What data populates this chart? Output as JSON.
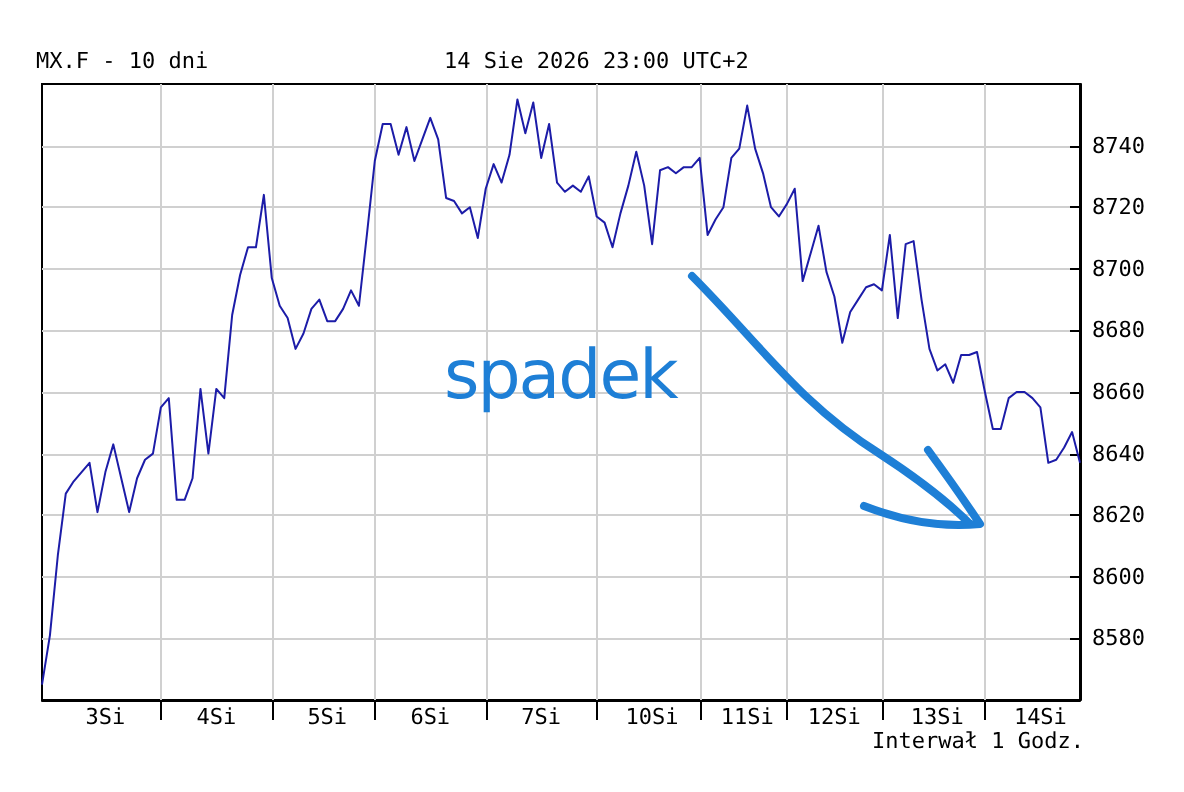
{
  "chart_data": {
    "type": "line",
    "title": "MX.F - 10 dni",
    "subtitle": "14 Sie 2026 23:00 UTC+2",
    "annotations": [
      "spadek",
      "Interwał 1 Godz."
    ],
    "color": "#1c1ca8",
    "categories": [
      null,
      null,
      null,
      null,
      null,
      null,
      null,
      null,
      "3Si",
      null,
      null,
      null,
      null,
      null,
      null,
      null,
      null,
      null,
      null,
      null,
      null,
      null,
      "4Si",
      null,
      null,
      null,
      null,
      null,
      null,
      null,
      null,
      null,
      null,
      null,
      null,
      null,
      "5Si",
      null,
      null,
      null,
      null,
      null,
      null,
      null,
      null,
      null,
      null,
      null,
      null,
      "6Si",
      null,
      null,
      null,
      null,
      null,
      null,
      null,
      null,
      null,
      null,
      null,
      null,
      null,
      "7Si",
      null,
      null,
      null,
      null,
      null,
      null,
      null,
      null,
      null,
      null,
      null,
      null,
      null,
      "10Si",
      null,
      null,
      null,
      null,
      null,
      null,
      null,
      null,
      null,
      null,
      null,
      "11Si",
      null,
      null,
      null,
      null,
      null,
      null,
      null,
      null,
      null,
      null,
      "12Si",
      null,
      null,
      null,
      null,
      null,
      null,
      null,
      null,
      null,
      null,
      null,
      null,
      "13Si",
      null,
      null,
      null,
      null,
      null,
      null,
      null,
      null,
      null,
      null,
      null,
      null,
      "14Si",
      null,
      null,
      null,
      null,
      null
    ],
    "values": [
      8565,
      8581,
      8607,
      8627,
      8631,
      8634,
      8637,
      8621,
      8634,
      8643,
      8632,
      8621,
      8632,
      8638,
      8640,
      8655,
      8658,
      8625,
      8625,
      8632,
      8661,
      8640,
      8661,
      8658,
      8685,
      8698,
      8707,
      8707,
      8724,
      8697,
      8688,
      8684,
      8674,
      8679,
      8687,
      8690,
      8683,
      8683,
      8687,
      8693,
      8688,
      8711,
      8735,
      8747,
      8747,
      8737,
      8746,
      8735,
      8742,
      8749,
      8742,
      8723,
      8722,
      8718,
      8720,
      8710,
      8726,
      8734,
      8728,
      8737,
      8755,
      8744,
      8754,
      8736,
      8747,
      8728,
      8725,
      8727,
      8725,
      8730,
      8717,
      8715,
      8707,
      8718,
      8727,
      8738,
      8727,
      8708,
      8732,
      8733,
      8731,
      8733,
      8733,
      8736,
      8711,
      8716,
      8720,
      8736,
      8739,
      8753,
      8739,
      8731,
      8720,
      8717,
      8721,
      8726,
      8696,
      8705,
      8714,
      8699,
      8691,
      8676,
      8686,
      8690,
      8694,
      8695,
      8693,
      8711,
      8684,
      8708,
      8709,
      8690,
      8674,
      8667,
      8669,
      8663,
      8672,
      8672,
      8673,
      8660,
      8648,
      8648,
      8658,
      8660,
      8660,
      8658,
      8655,
      8637,
      8638,
      8642,
      8647,
      8637
    ],
    "ylim": [
      8560,
      8760
    ],
    "yticks": [
      8580,
      8600,
      8620,
      8640,
      8660,
      8680,
      8700,
      8720,
      8740
    ],
    "grid": true
  }
}
